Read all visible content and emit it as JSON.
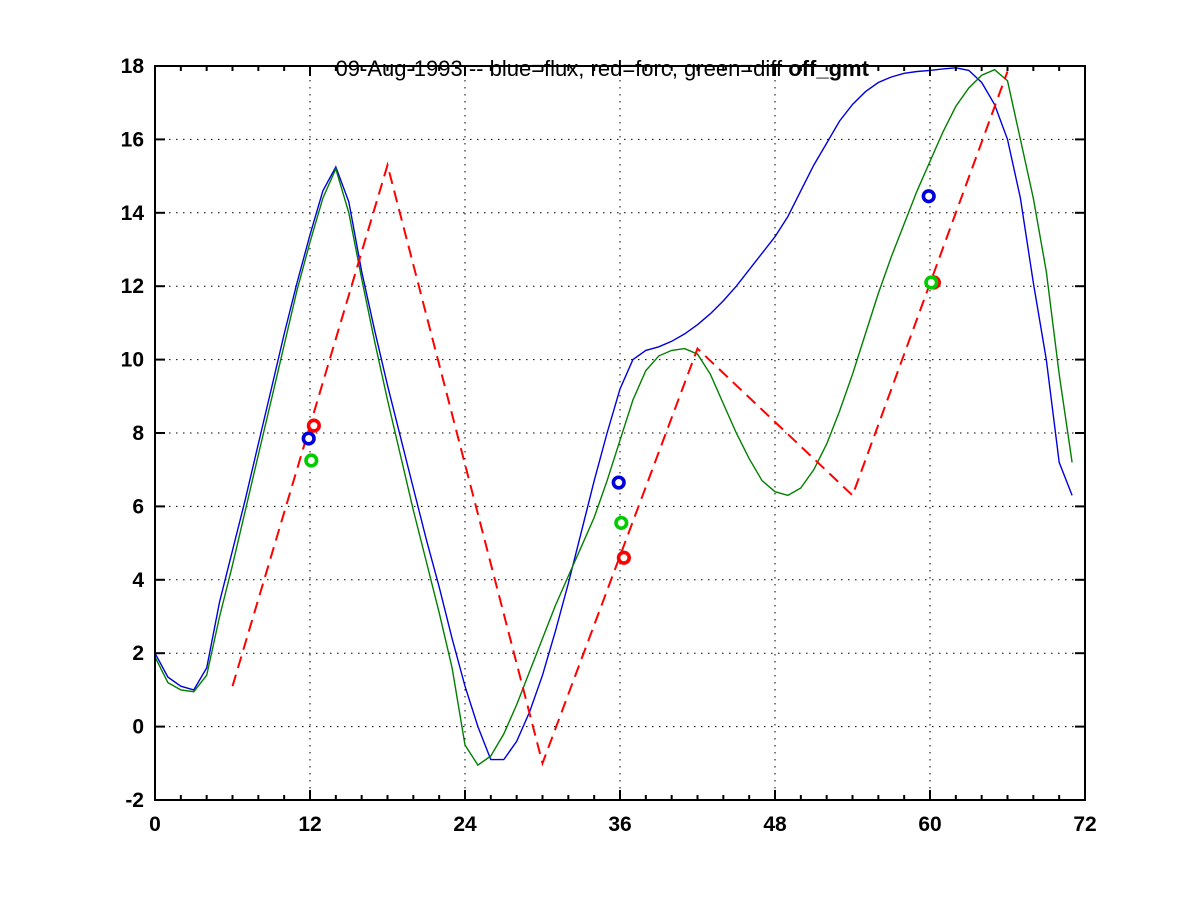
{
  "title": {
    "main": "09-Aug-1993 -- blue=flux, red=forc, green=diff",
    "suffix": " off_gmt"
  },
  "colors": {
    "background": "#ffffff",
    "axis": "#000000",
    "grid": "#000000",
    "flux_line": "#0000dd",
    "forc_line": "#ff0000",
    "diff_line": "#007f00",
    "flux_marker": "#0000dd",
    "forc_marker": "#ff0000",
    "diff_marker": "#00cc00"
  },
  "chart_data": {
    "type": "line",
    "title": "09-Aug-1993 -- blue=flux, red=forc, green=diff off_gmt",
    "xlabel": "",
    "ylabel": "",
    "xlim": [
      0,
      72
    ],
    "ylim": [
      -2,
      18
    ],
    "xticks": [
      0,
      12,
      24,
      36,
      48,
      60,
      72
    ],
    "x_minor_step": 2,
    "yticks": [
      -2,
      0,
      2,
      4,
      6,
      8,
      10,
      12,
      14,
      16,
      18
    ],
    "grid": "dotted-at-major-ticks",
    "legend_position": "none (legend encoded in title)",
    "series": [
      {
        "name": "flux",
        "label": "blue=flux",
        "color": "#0000dd",
        "line": "solid",
        "width": 1.4,
        "x_start": 0,
        "x_step": 1,
        "y": [
          2.0,
          1.35,
          1.1,
          1.0,
          1.6,
          3.4,
          4.8,
          6.2,
          7.7,
          9.2,
          10.7,
          12.1,
          13.4,
          14.6,
          15.25,
          14.3,
          12.4,
          10.8,
          9.3,
          7.9,
          6.5,
          5.1,
          3.8,
          2.4,
          1.1,
          0.0,
          -0.9,
          -0.9,
          -0.4,
          0.4,
          1.4,
          2.6,
          3.9,
          5.3,
          6.7,
          8.0,
          9.2,
          10.0,
          10.25,
          10.35,
          10.5,
          10.7,
          10.95,
          11.25,
          11.6,
          12.0,
          12.45,
          12.9,
          13.35,
          13.9,
          14.6,
          15.3,
          15.9,
          16.5,
          16.95,
          17.3,
          17.55,
          17.7,
          17.8,
          17.85,
          17.88,
          17.92,
          17.95,
          17.88,
          17.55,
          16.95,
          16.0,
          14.4,
          12.1,
          10.0,
          7.2,
          6.3
        ]
      },
      {
        "name": "diff",
        "label": "green=diff",
        "color": "#007f00",
        "line": "solid",
        "width": 1.4,
        "x_start": 0,
        "x_step": 1,
        "y": [
          1.9,
          1.2,
          1.0,
          0.95,
          1.4,
          3.0,
          4.4,
          5.9,
          7.4,
          8.9,
          10.4,
          11.9,
          13.2,
          14.4,
          15.2,
          14.0,
          12.2,
          10.5,
          8.9,
          7.4,
          5.9,
          4.5,
          3.1,
          1.6,
          -0.5,
          -1.05,
          -0.8,
          -0.2,
          0.6,
          1.5,
          2.4,
          3.3,
          4.1,
          4.9,
          5.7,
          6.7,
          7.8,
          8.9,
          9.7,
          10.1,
          10.25,
          10.3,
          10.15,
          9.6,
          8.8,
          8.0,
          7.3,
          6.7,
          6.4,
          6.3,
          6.5,
          7.0,
          7.7,
          8.6,
          9.6,
          10.7,
          11.8,
          12.8,
          13.7,
          14.6,
          15.4,
          16.2,
          16.9,
          17.4,
          17.75,
          17.9,
          17.6,
          16.0,
          14.4,
          12.4,
          9.6,
          7.2
        ]
      },
      {
        "name": "forc",
        "label": "red=forc",
        "color": "#ff0000",
        "line": "dashed",
        "width": 2,
        "x": [
          6,
          18,
          30,
          42,
          54,
          66
        ],
        "y": [
          1.1,
          15.3,
          -1.0,
          10.3,
          6.3,
          17.85
        ]
      }
    ],
    "markers": [
      {
        "name": "flux-obs",
        "shape": "hollow-circle",
        "color": "#0000dd",
        "points": [
          [
            11.9,
            7.85
          ],
          [
            35.9,
            6.65
          ],
          [
            59.9,
            14.45
          ]
        ]
      },
      {
        "name": "forc-obs",
        "shape": "hollow-circle",
        "color": "#ff0000",
        "points": [
          [
            12.3,
            8.2
          ],
          [
            36.3,
            4.6
          ],
          [
            60.3,
            12.1
          ]
        ]
      },
      {
        "name": "diff-obs",
        "shape": "hollow-circle",
        "color": "#00cc00",
        "points": [
          [
            12.1,
            7.25
          ],
          [
            36.1,
            5.55
          ],
          [
            60.1,
            12.1
          ]
        ]
      }
    ]
  }
}
